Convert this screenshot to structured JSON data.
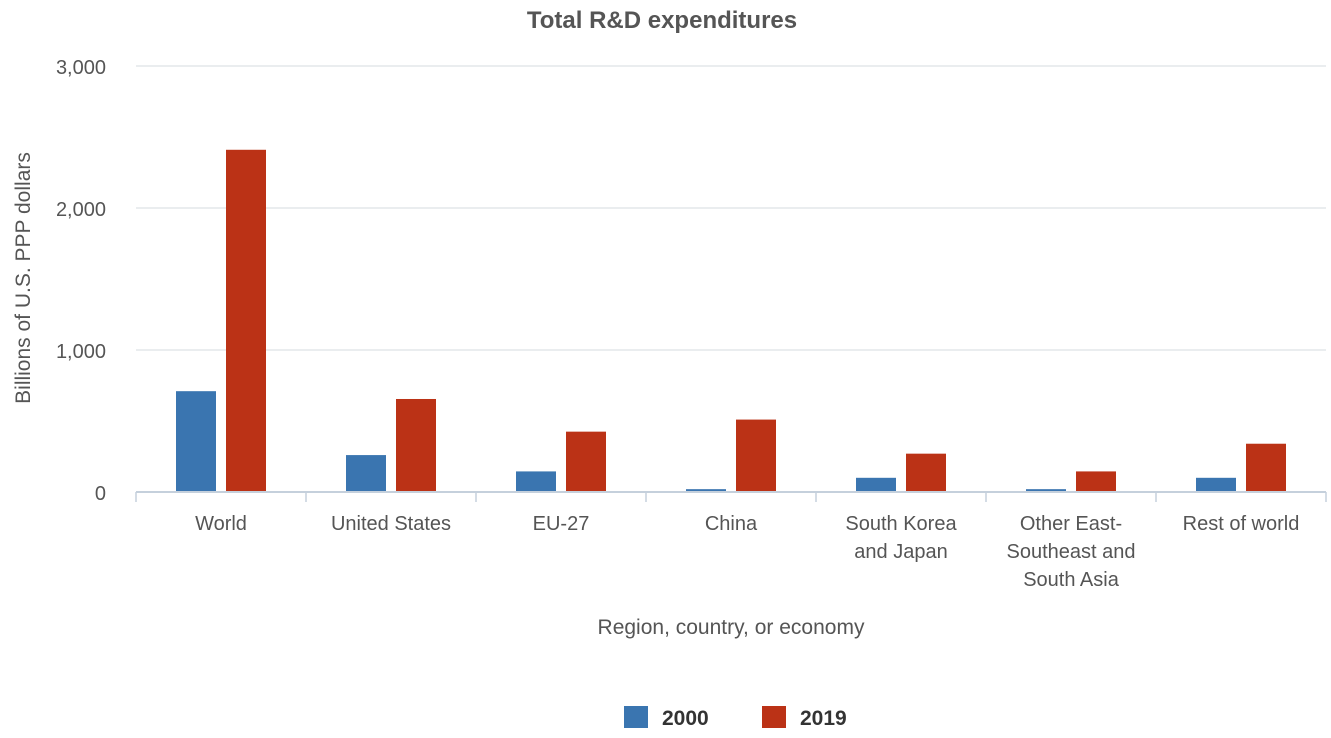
{
  "chart_data": {
    "type": "bar",
    "title": "Total R&D expenditures",
    "xlabel": "Region, country, or economy",
    "ylabel": "Billions of U.S. PPP dollars",
    "ylim": [
      0,
      3000
    ],
    "yticks": [
      0,
      1000,
      2000,
      3000
    ],
    "ytick_labels": [
      "0",
      "1,000",
      "2,000",
      "3,000"
    ],
    "grid": true,
    "legend_position": "bottom",
    "categories": [
      "World",
      "United States",
      "EU-27",
      "China",
      "South Korea and Japan",
      "Other East-Southeast and South Asia",
      "Rest of world"
    ],
    "category_label_lines": [
      [
        "World"
      ],
      [
        "United States"
      ],
      [
        "EU-27"
      ],
      [
        "China"
      ],
      [
        "South Korea",
        "and Japan"
      ],
      [
        "Other East-",
        "Southeast and",
        "South Asia"
      ],
      [
        "Rest of world"
      ]
    ],
    "series": [
      {
        "name": "2000",
        "color": "#3a75b0",
        "values": [
          710,
          260,
          145,
          20,
          100,
          20,
          100
        ]
      },
      {
        "name": "2019",
        "color": "#bb3216",
        "values": [
          2410,
          655,
          425,
          510,
          270,
          145,
          340
        ]
      }
    ]
  },
  "colors": {
    "text": "#555555",
    "title": "#555555",
    "grid": "#e4e7ea",
    "axis": "#c5d0dc"
  }
}
